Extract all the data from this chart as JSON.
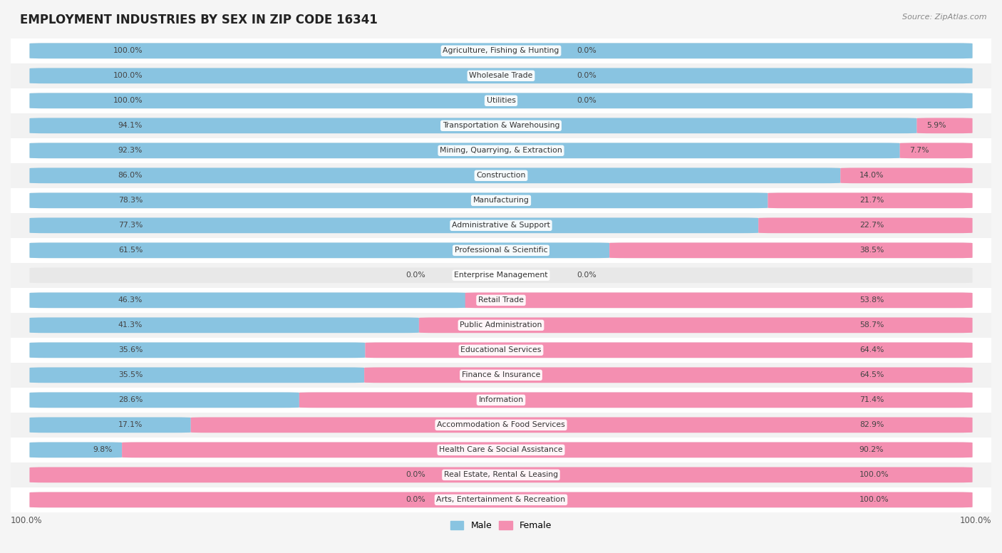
{
  "title": "EMPLOYMENT INDUSTRIES BY SEX IN ZIP CODE 16341",
  "source": "Source: ZipAtlas.com",
  "male_color": "#89C4E1",
  "female_color": "#F48FB1",
  "bg_bar_color": "#E8E8E8",
  "row_colors": [
    "#FFFFFF",
    "#F2F2F2"
  ],
  "background_color": "#F5F5F5",
  "industries": [
    "Agriculture, Fishing & Hunting",
    "Wholesale Trade",
    "Utilities",
    "Transportation & Warehousing",
    "Mining, Quarrying, & Extraction",
    "Construction",
    "Manufacturing",
    "Administrative & Support",
    "Professional & Scientific",
    "Enterprise Management",
    "Retail Trade",
    "Public Administration",
    "Educational Services",
    "Finance & Insurance",
    "Information",
    "Accommodation & Food Services",
    "Health Care & Social Assistance",
    "Real Estate, Rental & Leasing",
    "Arts, Entertainment & Recreation"
  ],
  "male_pct": [
    100.0,
    100.0,
    100.0,
    94.1,
    92.3,
    86.0,
    78.3,
    77.3,
    61.5,
    0.0,
    46.3,
    41.3,
    35.6,
    35.5,
    28.6,
    17.1,
    9.8,
    0.0,
    0.0
  ],
  "female_pct": [
    0.0,
    0.0,
    0.0,
    5.9,
    7.7,
    14.0,
    21.7,
    22.7,
    38.5,
    0.0,
    53.8,
    58.7,
    64.4,
    64.5,
    71.4,
    82.9,
    90.2,
    100.0,
    100.0
  ]
}
